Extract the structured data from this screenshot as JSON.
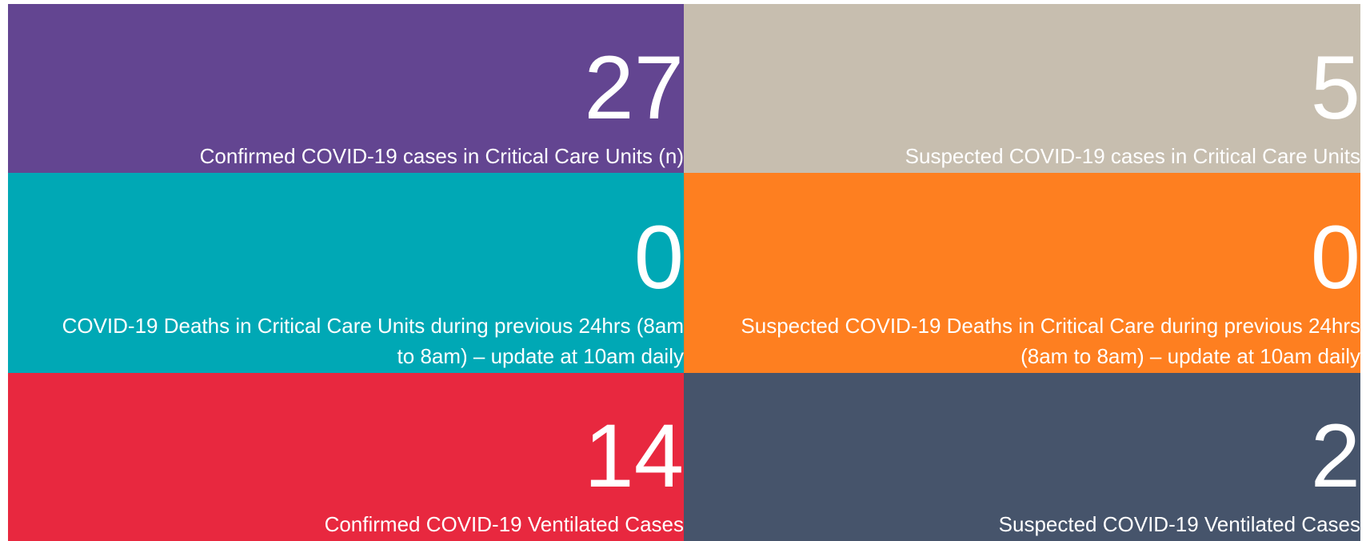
{
  "tiles": [
    {
      "value": 27,
      "label": "Confirmed COVID-19 cases in Critical Care Units (n)",
      "color": "#634591"
    },
    {
      "value": 5,
      "label": "Suspected COVID-19 cases in Critical Care Units",
      "color": "#c7beaf"
    },
    {
      "value": 0,
      "label": "COVID-19 Deaths in Critical Care Units during previous 24hrs (8am to 8am) – update at 10am daily",
      "color": "#00a8b5"
    },
    {
      "value": 0,
      "label": "Suspected COVID-19 Deaths in Critical Care during previous 24hrs (8am to 8am) – update at 10am daily",
      "color": "#fe7f20"
    },
    {
      "value": 14,
      "label": "Confirmed COVID-19 Ventilated Cases",
      "color": "#e8283f"
    },
    {
      "value": 2,
      "label": "Suspected COVID-19 Ventilated Cases",
      "color": "#46546b"
    }
  ]
}
